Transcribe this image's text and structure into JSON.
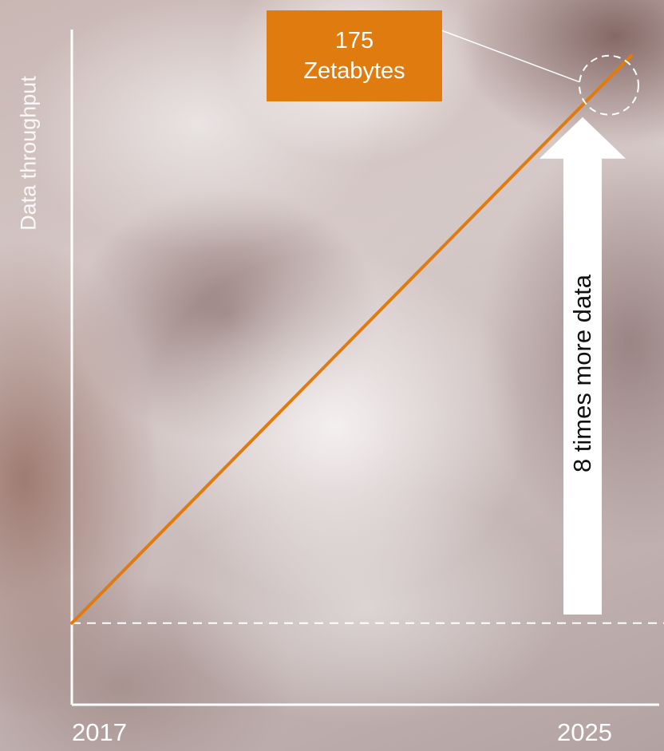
{
  "colors": {
    "line": "#e07b10",
    "callout_bg": "#e07b10",
    "axis": "#ffffff",
    "arrow": "#ffffff",
    "arrow_text": "#111111"
  },
  "chart_data": {
    "type": "line",
    "title": "",
    "xlabel": "",
    "ylabel": "Data throughput",
    "x_ticks": [
      "2017",
      "2025"
    ],
    "series": [
      {
        "values": [
          {
            "x": 2017,
            "y": 22
          },
          {
            "x": 2025,
            "y": 175
          }
        ]
      }
    ],
    "ylim": [
      0,
      190
    ],
    "xlim": [
      2017,
      2025.4
    ],
    "grid": false,
    "legend": "none",
    "baseline_y": 22,
    "callout": {
      "line1": "175",
      "line2": "Zetabytes",
      "target": {
        "x": 2025,
        "y": 175
      }
    },
    "arrow_annotation": "8 times more data"
  }
}
